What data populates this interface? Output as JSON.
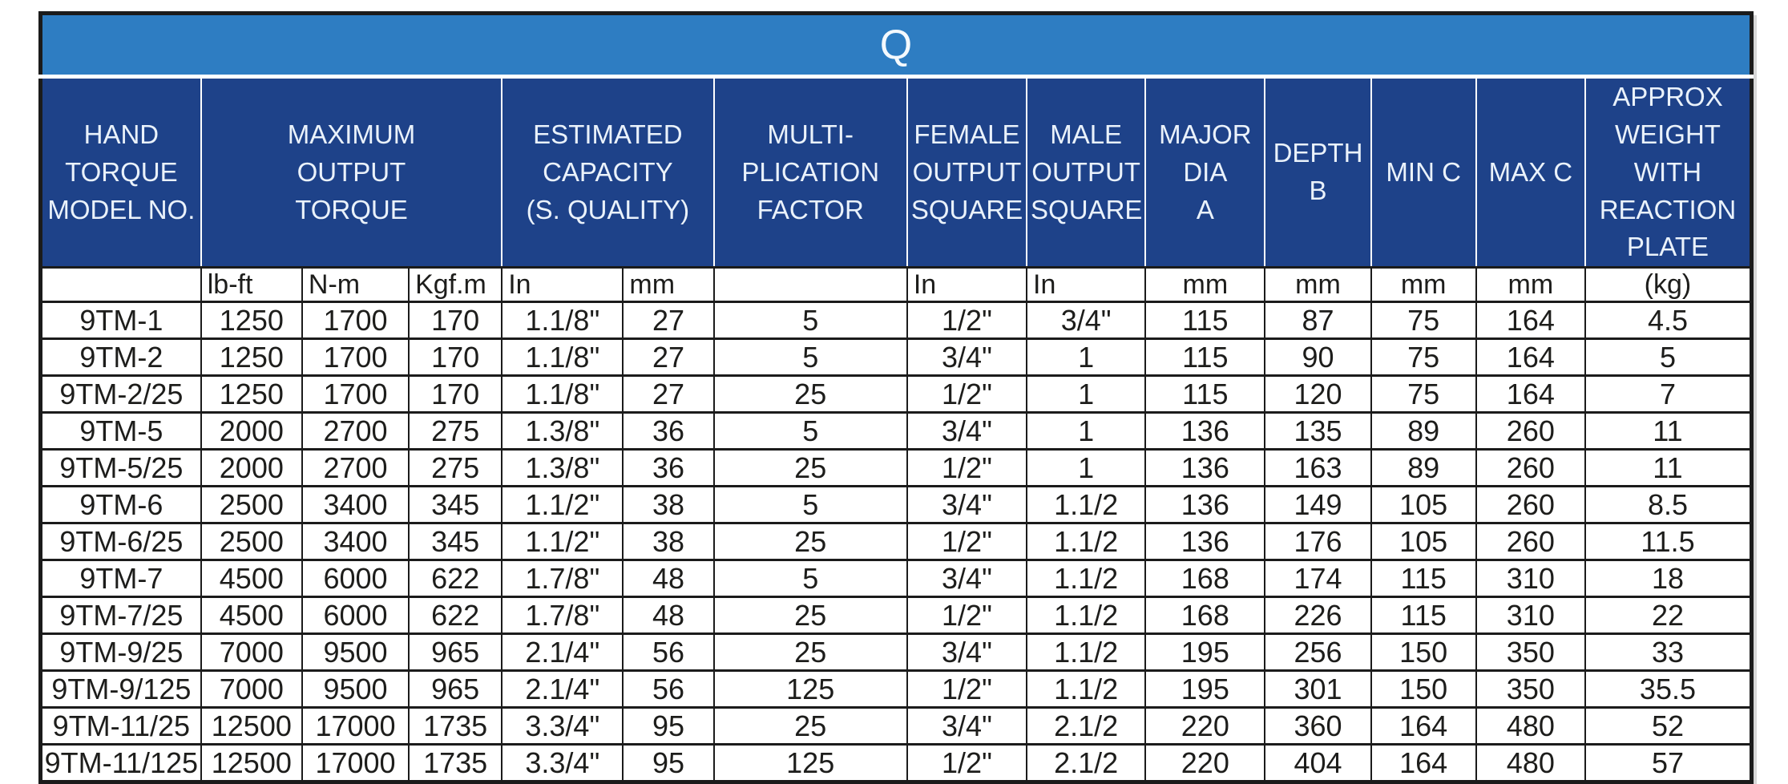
{
  "colors": {
    "title_bg": "#2e7dc2",
    "header_bg": "#1e4289",
    "header_text": "#eaf2fb",
    "grid": "#1b1b1b",
    "text": "#1d1d1b",
    "row_bg": "#ffffff"
  },
  "chart_data": {
    "type": "table",
    "title": "Q",
    "headers": {
      "model": "HAND\nTORQUE\nMODEL NO.",
      "max_output_torque": "MAXIMUM\nOUTPUT\nTORQUE",
      "estimated_capacity": "ESTIMATED\nCAPACITY\n(S. QUALITY)",
      "multiplication_factor": "MULTI-\nPLICATION\nFACTOR",
      "female_output_square": "FEMALE\nOUTPUT\nSQUARE",
      "male_output_square": "MALE\nOUTPUT\nSQUARE",
      "major_dia_a": "MAJOR\nDIA\nA",
      "depth_b": "DEPTH B",
      "min_c": "MIN C",
      "max_c": "MAX C",
      "approx_weight": "APPROX\nWEIGHT WITH\nREACTION\nPLATE"
    },
    "units": [
      "",
      "lb-ft",
      "N-m",
      "Kgf.m",
      "In",
      "mm",
      "",
      "In",
      "In",
      "mm",
      "mm",
      "mm",
      "mm",
      "(kg)"
    ],
    "rows": [
      [
        "9TM-1",
        "1250",
        "1700",
        "170",
        "1.1/8\"",
        "27",
        "5",
        "1/2\"",
        "3/4\"",
        "115",
        "87",
        "75",
        "164",
        "4.5"
      ],
      [
        "9TM-2",
        "1250",
        "1700",
        "170",
        "1.1/8\"",
        "27",
        "5",
        "3/4\"",
        "1",
        "115",
        "90",
        "75",
        "164",
        "5"
      ],
      [
        "9TM-2/25",
        "1250",
        "1700",
        "170",
        "1.1/8\"",
        "27",
        "25",
        "1/2\"",
        "1",
        "115",
        "120",
        "75",
        "164",
        "7"
      ],
      [
        "9TM-5",
        "2000",
        "2700",
        "275",
        "1.3/8\"",
        "36",
        "5",
        "3/4\"",
        "1",
        "136",
        "135",
        "89",
        "260",
        "11"
      ],
      [
        "9TM-5/25",
        "2000",
        "2700",
        "275",
        "1.3/8\"",
        "36",
        "25",
        "1/2\"",
        "1",
        "136",
        "163",
        "89",
        "260",
        "11"
      ],
      [
        "9TM-6",
        "2500",
        "3400",
        "345",
        "1.1/2\"",
        "38",
        "5",
        "3/4\"",
        "1.1/2",
        "136",
        "149",
        "105",
        "260",
        "8.5"
      ],
      [
        "9TM-6/25",
        "2500",
        "3400",
        "345",
        "1.1/2\"",
        "38",
        "25",
        "1/2\"",
        "1.1/2",
        "136",
        "176",
        "105",
        "260",
        "11.5"
      ],
      [
        "9TM-7",
        "4500",
        "6000",
        "622",
        "1.7/8\"",
        "48",
        "5",
        "3/4\"",
        "1.1/2",
        "168",
        "174",
        "115",
        "310",
        "18"
      ],
      [
        "9TM-7/25",
        "4500",
        "6000",
        "622",
        "1.7/8\"",
        "48",
        "25",
        "1/2\"",
        "1.1/2",
        "168",
        "226",
        "115",
        "310",
        "22"
      ],
      [
        "9TM-9/25",
        "7000",
        "9500",
        "965",
        "2.1/4\"",
        "56",
        "25",
        "3/4\"",
        "1.1/2",
        "195",
        "256",
        "150",
        "350",
        "33"
      ],
      [
        "9TM-9/125",
        "7000",
        "9500",
        "965",
        "2.1/4\"",
        "56",
        "125",
        "1/2\"",
        "1.1/2",
        "195",
        "301",
        "150",
        "350",
        "35.5"
      ],
      [
        "9TM-11/25",
        "12500",
        "17000",
        "1735",
        "3.3/4\"",
        "95",
        "25",
        "3/4\"",
        "2.1/2",
        "220",
        "360",
        "164",
        "480",
        "52"
      ],
      [
        "9TM-11/125",
        "12500",
        "17000",
        "1735",
        "3.3/4\"",
        "95",
        "125",
        "1/2\"",
        "2.1/2",
        "220",
        "404",
        "164",
        "480",
        "57"
      ]
    ]
  }
}
